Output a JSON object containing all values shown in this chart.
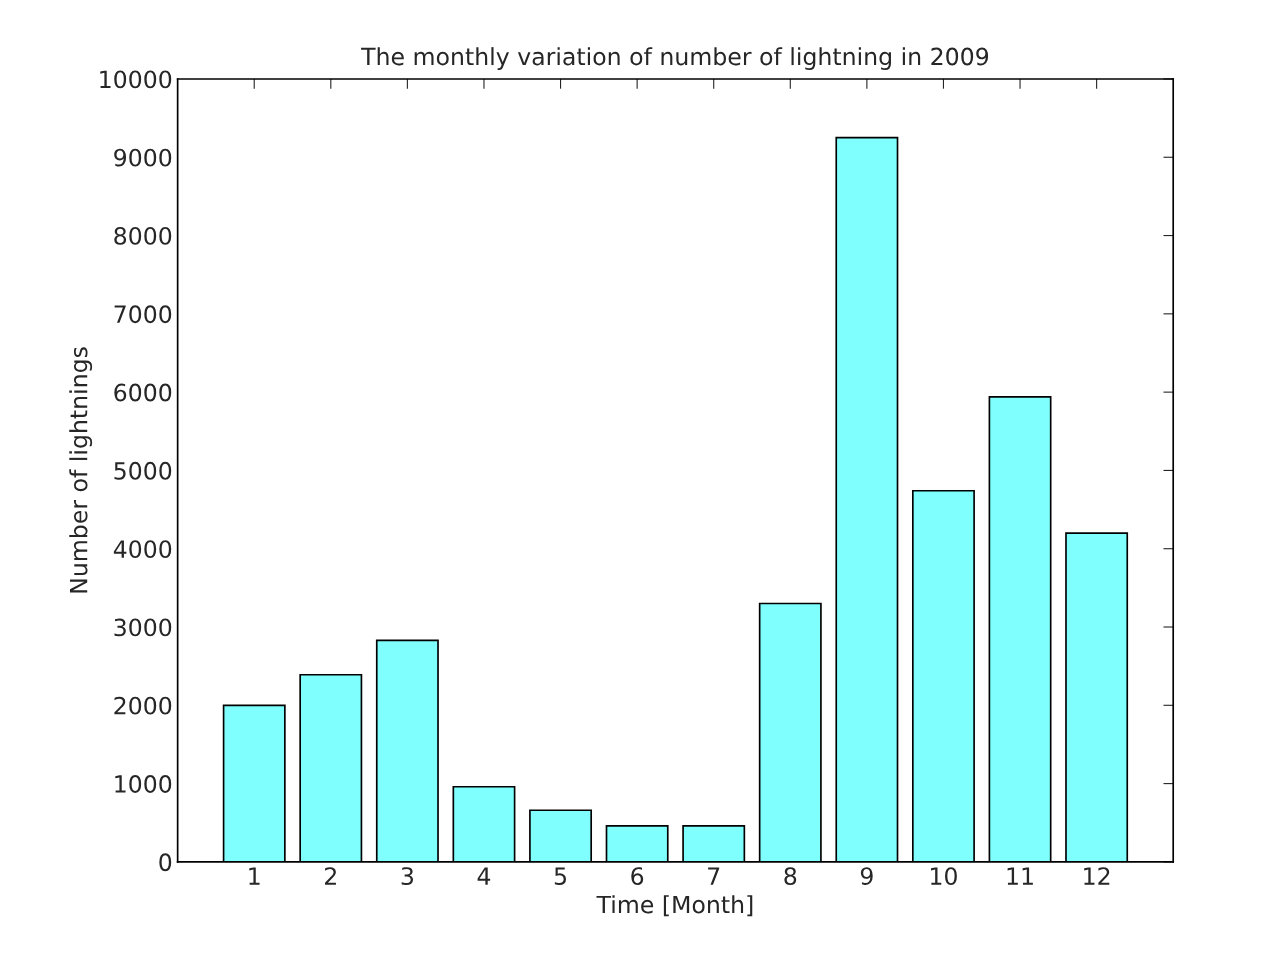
{
  "chart_data": {
    "type": "bar",
    "title": "The monthly variation of number of lightning in 2009",
    "xlabel": "Time [Month]",
    "ylabel": "Number of lightnings",
    "x": [
      1,
      2,
      3,
      4,
      5,
      6,
      7,
      8,
      9,
      10,
      11,
      12
    ],
    "values": [
      2000,
      2390,
      2830,
      960,
      660,
      460,
      460,
      3300,
      9250,
      4740,
      5940,
      4200
    ],
    "color": "#80ffff",
    "xlim": [
      0,
      13
    ],
    "xticks": [
      1,
      2,
      3,
      4,
      5,
      6,
      7,
      8,
      9,
      10,
      11,
      12
    ],
    "ylim": [
      0,
      10000
    ],
    "yticks": [
      0,
      1000,
      2000,
      3000,
      4000,
      5000,
      6000,
      7000,
      8000,
      9000,
      10000
    ],
    "grid": false,
    "legend": false
  }
}
